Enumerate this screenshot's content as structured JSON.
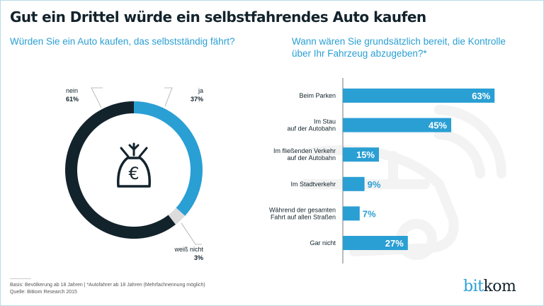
{
  "header": {
    "title": "Gut ein Drittel würde ein selbstfahrendes Auto kaufen",
    "subtitle_left": "Würden Sie ein Auto kaufen, das selbstständig fährt?",
    "subtitle_right": "Wann wären Sie grundsätzlich bereit, die Kontrolle über Ihr Fahrzeug abzugeben?*"
  },
  "colors": {
    "accent": "#2a9fd4",
    "dark": "#13232c",
    "grey": "#dcdcdc",
    "watermark": "#f2f2f2"
  },
  "chart_data": [
    {
      "type": "pie",
      "variant": "donut",
      "title": "Würden Sie ein Auto kaufen, das selbstständig fährt?",
      "center_icon": "money-bag-euro-icon",
      "slices": [
        {
          "label": "ja",
          "value": 37,
          "display": "37%",
          "color": "#2a9fd4"
        },
        {
          "label": "weiß nicht",
          "value": 3,
          "display": "3%",
          "color": "#dcdcdc"
        },
        {
          "label": "nein",
          "value": 61,
          "display": "61%",
          "color": "#13232c"
        }
      ]
    },
    {
      "type": "bar",
      "orientation": "horizontal",
      "title": "Wann wären Sie grundsätzlich bereit, die Kontrolle über Ihr Fahrzeug abzugeben?*",
      "categories": [
        [
          "Beim Parken"
        ],
        [
          "Im Stau",
          "auf der Autobahn"
        ],
        [
          "Im fließenden Verkehr",
          "auf der Autobahn"
        ],
        [
          "Im Stadtverkehr"
        ],
        [
          "Während der gesamten",
          "Fahrt auf allen Straßen"
        ],
        [
          "Gar nicht"
        ]
      ],
      "values": [
        63,
        45,
        15,
        9,
        7,
        27
      ],
      "labels": [
        "63%",
        "45%",
        "15%",
        "9%",
        "7%",
        "27%"
      ],
      "xlim": [
        0,
        100
      ],
      "unit": "%",
      "grid": false
    }
  ],
  "footer": {
    "basis": "Basis: Bevölkerung ab 18 Jahren | *Autofahrer ab 18 Jahren (Mehrfachnennung möglich)",
    "source": "Quelle: Bitkom Research 2015"
  },
  "logo": {
    "part1": "bit",
    "part2": "kom"
  }
}
